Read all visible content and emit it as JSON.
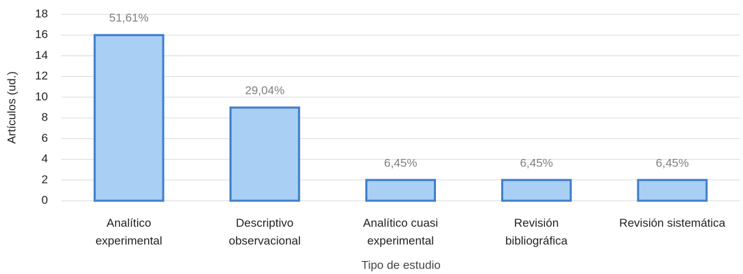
{
  "chart_data": {
    "type": "bar",
    "categories": [
      "Analítico\nexperimental",
      "Descriptivo\nobservacional",
      "Analítico cuasi\nexperimental",
      "Revisión\nbibliográfica",
      "Revisión sistemática"
    ],
    "values": [
      16,
      9,
      2,
      2,
      2
    ],
    "annotations": [
      "51,61%",
      "29,04%",
      "6,45%",
      "6,45%",
      "6,45%"
    ],
    "color": "#aacff4",
    "edge_color": "#3d7fca",
    "ylim": [
      0,
      18
    ],
    "yticks": [
      0,
      2,
      4,
      6,
      8,
      10,
      12,
      14,
      16,
      18
    ],
    "grid": true,
    "xlabel": "Tipo de estudio",
    "ylabel": "Artículos (ud.)"
  }
}
